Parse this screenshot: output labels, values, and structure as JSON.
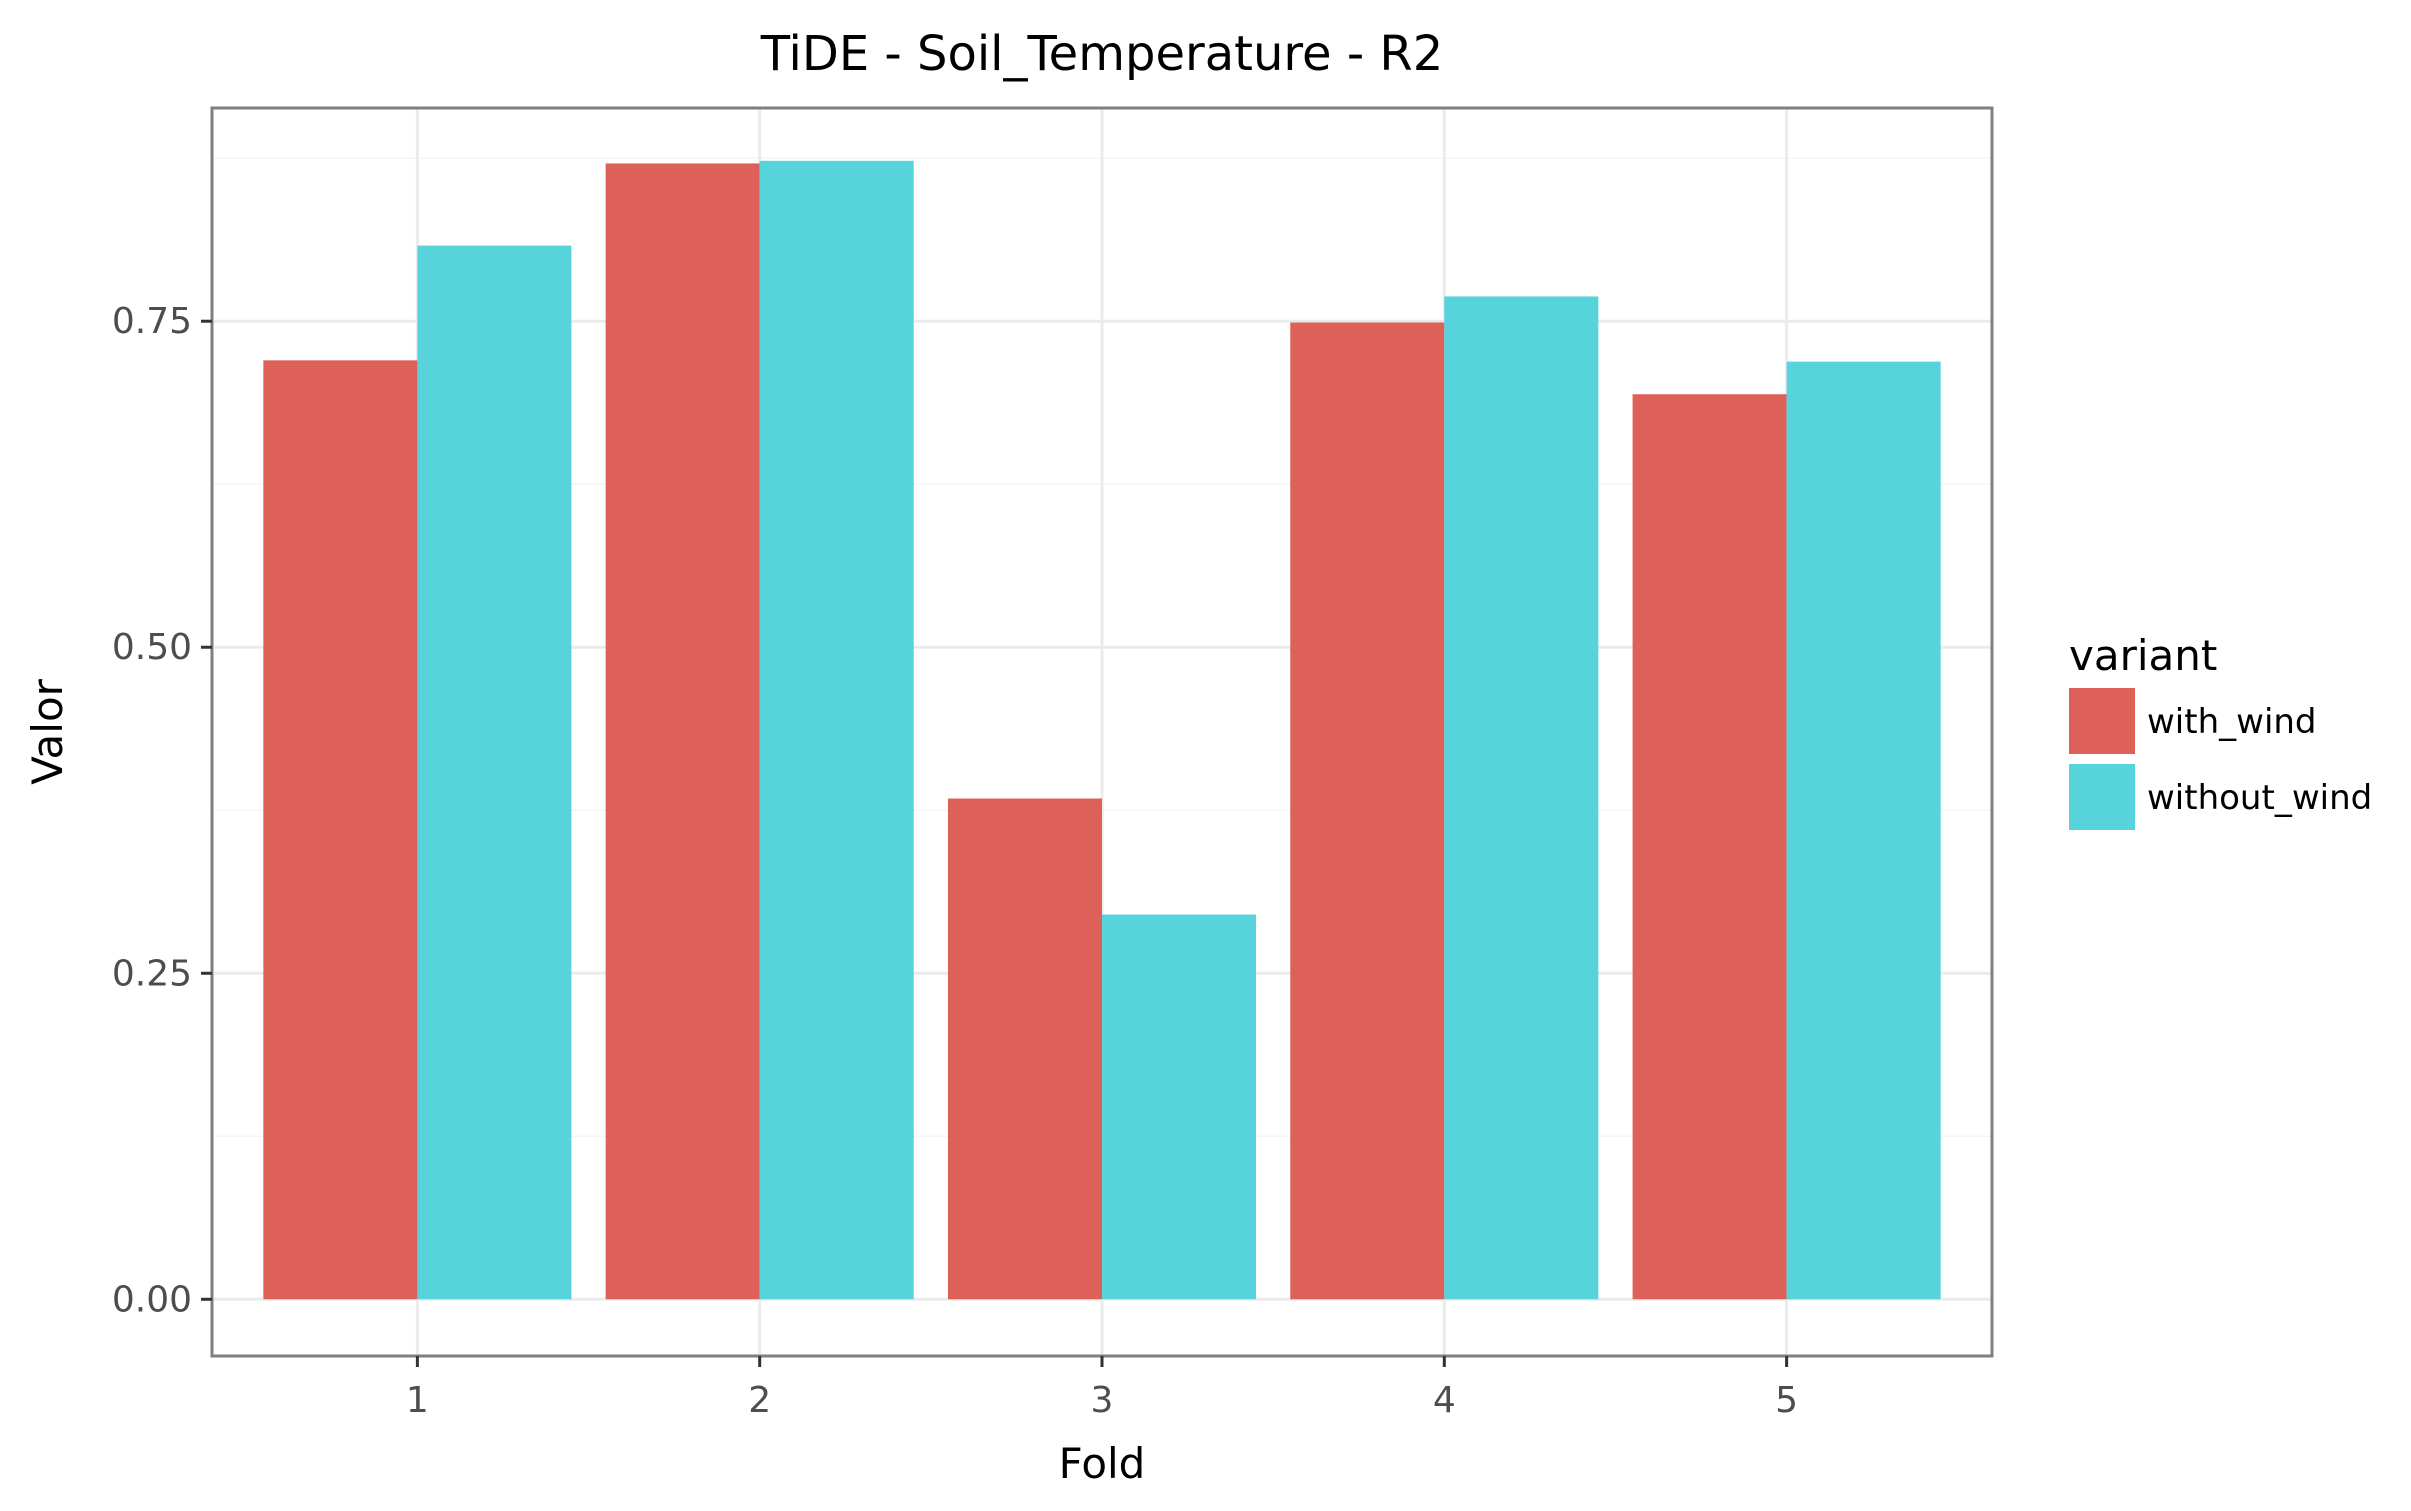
{
  "chart_data": {
    "type": "bar",
    "title": "TiDE - Soil_Temperature - R2",
    "xlabel": "Fold",
    "ylabel": "Valor",
    "categories": [
      "1",
      "2",
      "3",
      "4",
      "5"
    ],
    "series": [
      {
        "name": "with_wind",
        "color": "#DD6059",
        "values": [
          0.72,
          0.871,
          0.384,
          0.749,
          0.694
        ]
      },
      {
        "name": "without_wind",
        "color": "#57D3DB",
        "values": [
          0.808,
          0.873,
          0.295,
          0.769,
          0.719
        ]
      }
    ],
    "yticks": [
      0,
      0.25,
      0.5,
      0.75
    ],
    "ytick_labels": [
      "0.00",
      "0.25",
      "0.50",
      "0.75"
    ],
    "ylim": [
      -0.0435,
      0.9135
    ],
    "legend": {
      "title": "variant",
      "position": "right"
    },
    "grid": true
  }
}
